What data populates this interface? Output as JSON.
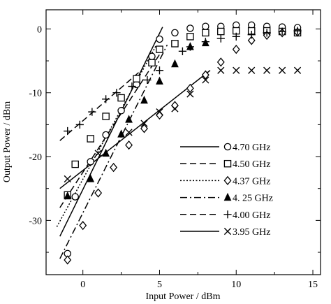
{
  "chart_data": {
    "type": "scatter",
    "title": "",
    "xlabel": "Input Power / dBm",
    "ylabel": "Output Power / dBm",
    "xlim": [
      -2.4,
      15.5
    ],
    "ylim": [
      -38.5,
      3.0
    ],
    "xticks": [
      0,
      5,
      10,
      15
    ],
    "xtick_labels": [
      "0",
      "5",
      "10",
      "15"
    ],
    "yticks": [
      0,
      -10,
      -20,
      -30
    ],
    "ytick_labels": [
      "0",
      "-10",
      "-20",
      "-30"
    ],
    "grid": false,
    "legend_position": "lower-right",
    "series": [
      {
        "name": "4.70 GHz",
        "marker": "circle",
        "line_style": "solid",
        "x": [
          -1,
          -0.5,
          0.5,
          1.5,
          2.5,
          3.5,
          4.5,
          5,
          6,
          7,
          8,
          9,
          10,
          11,
          12,
          13,
          14
        ],
        "y": [
          -35.2,
          -26.3,
          -20.8,
          -16.6,
          -12.8,
          -8.7,
          -4.3,
          -1.6,
          -0.6,
          0.1,
          0.4,
          0.4,
          0.6,
          0.6,
          0.4,
          0.3,
          0.2
        ],
        "fit_line": {
          "x": [
            -1.5,
            5.2
          ],
          "y": [
            -32.5,
            0.3
          ]
        }
      },
      {
        "name": "4.50 GHz",
        "marker": "square",
        "line_style": "dashed",
        "x": [
          -1,
          -0.5,
          0.5,
          1.5,
          2.5,
          3.5,
          4.5,
          5,
          6,
          7,
          8,
          9,
          10,
          11,
          12,
          13,
          14
        ],
        "y": [
          -26.0,
          -21.2,
          -17.2,
          -13.7,
          -10.8,
          -7.8,
          -5.3,
          -3.2,
          -2.3,
          -1.2,
          -0.6,
          -0.4,
          -0.3,
          -0.3,
          -0.3,
          -0.4,
          -0.6
        ],
        "fit_line": {
          "x": [
            -1.5,
            5.0
          ],
          "y": [
            -28.0,
            -4.0
          ]
        }
      },
      {
        "name": "4.37 GHz",
        "marker": "diamond",
        "line_style": "dotted",
        "x": [
          -1,
          0,
          1,
          2,
          3,
          4,
          5,
          6,
          7,
          8,
          9,
          10,
          11,
          12,
          13,
          14
        ],
        "y": [
          -36.2,
          -30.8,
          -25.7,
          -21.7,
          -18.2,
          -15.6,
          -13.5,
          -12.0,
          -9.3,
          -7.2,
          -5.2,
          -3.2,
          -1.8,
          -1.0,
          -0.6,
          -0.5
        ],
        "fit_line": {
          "x": [
            -1.7,
            4.8
          ],
          "y": [
            -31.0,
            -2.5
          ]
        }
      },
      {
        "name": "4. 25 GHz",
        "marker": "triangle",
        "line_style": "dashdot",
        "x": [
          -1,
          0.5,
          1.5,
          2.5,
          3,
          4,
          5,
          6,
          7,
          8
        ],
        "y": [
          -26.2,
          -23.5,
          -19.5,
          -16.5,
          -14.2,
          -11.2,
          -8.2,
          -5.5,
          -2.8,
          -2.2
        ],
        "fit_line": {
          "x": [
            -1.5,
            5.5
          ],
          "y": [
            -36.0,
            -2.5
          ]
        }
      },
      {
        "name": "4.00 GHz",
        "marker": "plus",
        "line_style": "dashed",
        "x": [
          -1,
          -0.2,
          0.6,
          1.5,
          2.2,
          3.2,
          4.2,
          5,
          6.5,
          7,
          8,
          9,
          10,
          11,
          12,
          13,
          14
        ],
        "y": [
          -16.0,
          -15.0,
          -13.0,
          -11.0,
          -10.0,
          -9.0,
          -8.0,
          -6.5,
          -3.5,
          -2.8,
          -2.0,
          -1.5,
          -1.2,
          -0.9,
          -0.6,
          -0.4,
          -0.3
        ],
        "fit_line": {
          "x": [
            -1.5,
            3.8
          ],
          "y": [
            -17.5,
            -6.5
          ]
        }
      },
      {
        "name": "3.95 GHz",
        "marker": "x",
        "line_style": "solid",
        "x": [
          -1,
          1,
          3,
          4,
          5,
          6,
          7,
          8,
          9,
          10,
          11,
          12,
          13,
          14
        ],
        "y": [
          -23.5,
          -19.5,
          -16.2,
          -14.8,
          -13.0,
          -12.5,
          -10.2,
          -8.0,
          -6.5,
          -6.5,
          -6.5,
          -6.5,
          -6.5,
          -6.5
        ],
        "fit_line": {
          "x": [
            -1.5,
            8.3
          ],
          "y": [
            -25.0,
            -6.5
          ]
        }
      }
    ]
  }
}
